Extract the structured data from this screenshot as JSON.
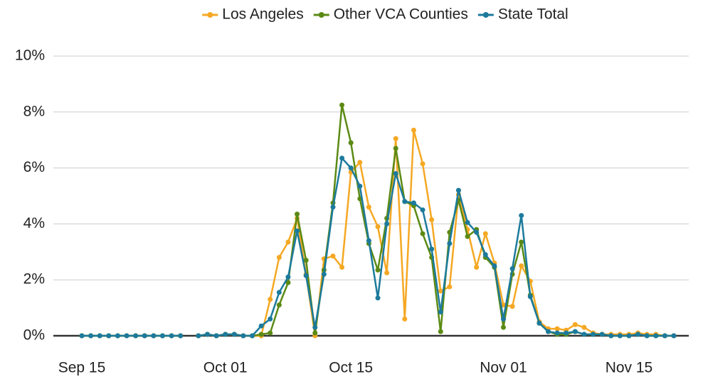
{
  "chart_data": {
    "type": "line",
    "x": [
      "Sep 15",
      "Sep 16",
      "Sep 17",
      "Sep 18",
      "Sep 19",
      "Sep 20",
      "Sep 21",
      "Sep 22",
      "Sep 23",
      "Sep 24",
      "Sep 25",
      "Sep 26",
      "Sep 27",
      "Sep 28",
      "Sep 29",
      "Sep 30",
      "Oct 01",
      "Oct 02",
      "Oct 03",
      "Oct 04",
      "Oct 05",
      "Oct 06",
      "Oct 07",
      "Oct 08",
      "Oct 09",
      "Oct 10",
      "Oct 11",
      "Oct 12",
      "Oct 13",
      "Oct 14",
      "Oct 15",
      "Oct 16",
      "Oct 17",
      "Oct 18",
      "Oct 19",
      "Oct 20",
      "Oct 21",
      "Oct 22",
      "Oct 23",
      "Oct 24",
      "Oct 25",
      "Oct 26",
      "Oct 27",
      "Oct 28",
      "Oct 29",
      "Oct 30",
      "Oct 31",
      "Nov 01",
      "Nov 02",
      "Nov 03",
      "Nov 04",
      "Nov 05",
      "Nov 06",
      "Nov 07",
      "Nov 08",
      "Nov 09",
      "Nov 10",
      "Nov 11",
      "Nov 12",
      "Nov 13",
      "Nov 14",
      "Nov 15",
      "Nov 16",
      "Nov 17",
      "Nov 18",
      "Nov 19",
      "Nov 20"
    ],
    "series": [
      {
        "name": "Los Angeles",
        "color": "#f5a823",
        "values": [
          0,
          0,
          0,
          0,
          0,
          0,
          0,
          0,
          0,
          0,
          0,
          0,
          null,
          0,
          0.05,
          0,
          0.05,
          0.05,
          0,
          0,
          0,
          1.3,
          2.8,
          3.35,
          4.2,
          2.2,
          0,
          2.75,
          2.85,
          2.45,
          5.85,
          6.2,
          4.6,
          3.9,
          2.25,
          7.05,
          0.6,
          7.35,
          6.15,
          4.15,
          1.6,
          1.75,
          5.05,
          3.8,
          2.45,
          3.65,
          2.6,
          1.1,
          1.05,
          2.5,
          1.95,
          0.5,
          0.25,
          0.25,
          0.2,
          0.4,
          0.3,
          0.1,
          0.05,
          0.05,
          0.05,
          0.05,
          0.1,
          0.05,
          0.05,
          0,
          0
        ]
      },
      {
        "name": "Other VCA Counties",
        "color": "#5b8a14",
        "values": [
          0,
          0,
          0,
          0,
          0,
          0,
          0,
          0,
          0,
          0,
          0,
          0,
          null,
          0,
          0.05,
          0,
          0.05,
          0.05,
          0,
          0,
          0.05,
          0.1,
          1.1,
          1.9,
          4.35,
          2.7,
          0.1,
          2.35,
          4.75,
          8.25,
          6.9,
          4.9,
          3.3,
          2.35,
          4.2,
          6.7,
          4.8,
          4.65,
          3.65,
          2.8,
          0.15,
          3.7,
          4.85,
          3.55,
          3.8,
          2.8,
          2.45,
          0.3,
          2.2,
          3.35,
          1.45,
          0.45,
          0.15,
          0.05,
          0.05,
          0.15,
          0.05,
          0.05,
          0.05,
          0,
          0,
          0,
          0.05,
          0,
          0,
          0,
          0
        ]
      },
      {
        "name": "State Total",
        "color": "#1c7a9c",
        "values": [
          0,
          0,
          0,
          0,
          0,
          0,
          0,
          0,
          0,
          0,
          0,
          0,
          null,
          0,
          0.05,
          0,
          0.05,
          0.05,
          0,
          0,
          0.35,
          0.6,
          1.55,
          2.1,
          3.75,
          2.15,
          0.3,
          2.2,
          4.6,
          6.35,
          6.0,
          5.35,
          3.4,
          1.35,
          4.0,
          5.8,
          4.8,
          4.75,
          4.5,
          3.1,
          0.85,
          3.3,
          5.2,
          4.05,
          3.7,
          2.9,
          2.5,
          0.6,
          2.4,
          4.3,
          1.4,
          0.45,
          0.15,
          0.1,
          0.1,
          0.15,
          0.05,
          0.05,
          0.05,
          0,
          0,
          0,
          0.05,
          0,
          0,
          0,
          0
        ]
      }
    ],
    "xticks": [
      "Sep 15",
      "Oct 01",
      "Oct 15",
      "Nov 01",
      "Nov 15"
    ],
    "ylim": [
      0,
      10
    ],
    "yticks": [
      {
        "value": 0,
        "label": "0%"
      },
      {
        "value": 2,
        "label": "2%"
      },
      {
        "value": 4,
        "label": "4%"
      },
      {
        "value": 6,
        "label": "6%"
      },
      {
        "value": 8,
        "label": "8%"
      },
      {
        "value": 10,
        "label": "10%"
      }
    ],
    "grid": true,
    "legend": "top"
  }
}
